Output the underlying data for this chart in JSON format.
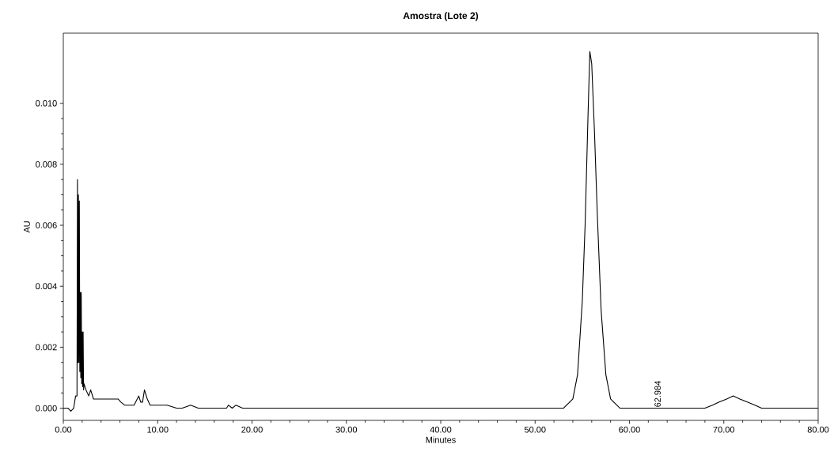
{
  "chart_data": {
    "type": "line",
    "title": "Amostra (Lote 2)",
    "xlabel": "Minutes",
    "ylabel": "AU",
    "series": [
      {
        "color": "#000000",
        "x": [
          0.0,
          0.5,
          0.8,
          1.1,
          1.3,
          1.45,
          1.5,
          1.55,
          1.6,
          1.65,
          1.7,
          1.75,
          1.8,
          1.85,
          1.9,
          1.95,
          2.0,
          2.05,
          2.1,
          2.15,
          2.2,
          2.4,
          2.7,
          2.9,
          3.2,
          4.0,
          5.0,
          5.8,
          6.1,
          6.5,
          7.5,
          8.0,
          8.2,
          8.4,
          8.6,
          8.9,
          9.2,
          9.6,
          11.0,
          12.0,
          12.6,
          13.5,
          14.3,
          17.3,
          17.5,
          17.9,
          18.3,
          19.0,
          30.0,
          45.0,
          53.0,
          54.0,
          54.5,
          55.0,
          55.3,
          55.6,
          55.8,
          56.0,
          56.3,
          56.6,
          57.0,
          57.5,
          58.0,
          59.0,
          62.0,
          68.0,
          68.8,
          69.5,
          70.3,
          71.0,
          71.7,
          72.5,
          73.3,
          74.0,
          80.0
        ],
        "values": [
          0.0,
          0.0,
          -0.0001,
          0.0,
          0.0004,
          0.0004,
          0.0075,
          0.0015,
          0.007,
          0.0015,
          0.0068,
          0.0012,
          0.0038,
          0.001,
          0.0038,
          0.0008,
          0.0025,
          0.0007,
          0.0025,
          0.0006,
          0.0008,
          0.0006,
          0.0004,
          0.0006,
          0.0003,
          0.0003,
          0.0003,
          0.0003,
          0.0002,
          0.0001,
          0.0001,
          0.0004,
          0.0002,
          0.0002,
          0.0006,
          0.0003,
          0.0001,
          0.0001,
          0.0001,
          0.0,
          0.0,
          0.0001,
          0.0,
          0.0,
          0.0001,
          0.0,
          0.0001,
          0.0,
          0.0,
          0.0,
          0.0,
          0.0003,
          0.0011,
          0.0035,
          0.006,
          0.0095,
          0.0117,
          0.0113,
          0.009,
          0.0063,
          0.0032,
          0.0011,
          0.0003,
          0.0,
          0.0,
          0.0,
          0.0001,
          0.0002,
          0.0003,
          0.0004,
          0.0003,
          0.0002,
          0.0001,
          0.0,
          0.0
        ]
      }
    ],
    "annotations": [
      {
        "text": "62.984",
        "x": 62.984,
        "y": 0.0
      }
    ],
    "xlim": [
      0,
      80
    ],
    "ylim": [
      -0.0004,
      0.0123
    ],
    "xticks": [
      {
        "value": 0,
        "label": "0.00"
      },
      {
        "value": 10,
        "label": "10.00"
      },
      {
        "value": 20,
        "label": "20.00"
      },
      {
        "value": 30,
        "label": "30.00"
      },
      {
        "value": 40,
        "label": "40.00"
      },
      {
        "value": 50,
        "label": "50.00"
      },
      {
        "value": 60,
        "label": "60.00"
      },
      {
        "value": 70,
        "label": "70.00"
      },
      {
        "value": 80,
        "label": "80.00"
      }
    ],
    "yticks": [
      {
        "value": 0,
        "label": "0.000"
      },
      {
        "value": 0.002,
        "label": "0.002"
      },
      {
        "value": 0.004,
        "label": "0.004"
      },
      {
        "value": 0.006,
        "label": "0.006"
      },
      {
        "value": 0.008,
        "label": "0.008"
      },
      {
        "value": 0.01,
        "label": "0.010"
      }
    ],
    "marker": "none",
    "line_style": "solid"
  }
}
